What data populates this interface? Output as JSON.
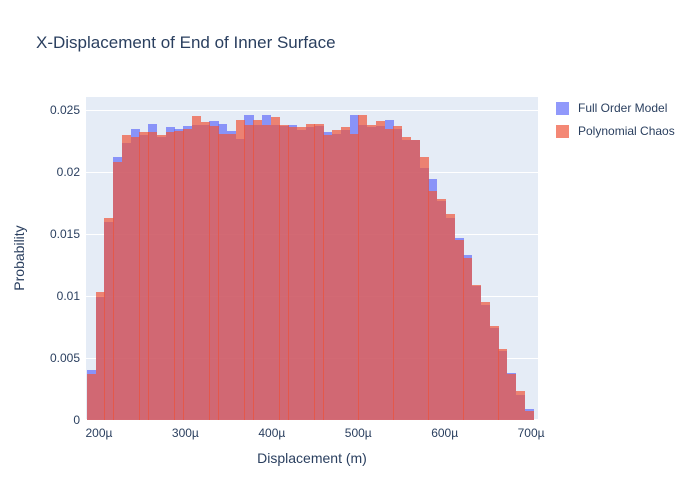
{
  "chart_data": {
    "type": "histogram",
    "barmode": "overlay",
    "title": "X-Displacement of End of Inner Surface",
    "xlabel": "Displacement (m)",
    "ylabel": "Probability",
    "grid": true,
    "legend_position": "outside-top-right",
    "x_unit": "micrometers",
    "x_range_um": [
      185,
      708
    ],
    "y_range": [
      0,
      0.02605
    ],
    "bin_start_um": 186,
    "bin_width_um": 10.13,
    "x_ticks": [
      {
        "v": 200,
        "label": "200µ"
      },
      {
        "v": 300,
        "label": "300µ"
      },
      {
        "v": 400,
        "label": "400µ"
      },
      {
        "v": 500,
        "label": "500µ"
      },
      {
        "v": 600,
        "label": "600µ"
      },
      {
        "v": 700,
        "label": "700µ"
      }
    ],
    "y_ticks": [
      {
        "v": 0,
        "label": "0"
      },
      {
        "v": 0.005,
        "label": "0.005"
      },
      {
        "v": 0.01,
        "label": "0.01"
      },
      {
        "v": 0.015,
        "label": "0.015"
      },
      {
        "v": 0.02,
        "label": "0.02"
      },
      {
        "v": 0.025,
        "label": "0.025"
      }
    ],
    "series": [
      {
        "name": "Full Order Model",
        "color": "#636EFA",
        "fill_opacity": 0.7,
        "values": [
          0.004,
          0.0099,
          0.016,
          0.0212,
          0.0223,
          0.0235,
          0.023,
          0.0239,
          0.0228,
          0.0236,
          0.0235,
          0.0237,
          0.0238,
          0.0238,
          0.0241,
          0.0239,
          0.0233,
          0.0227,
          0.0246,
          0.0238,
          0.0246,
          0.0238,
          0.0237,
          0.0238,
          0.0234,
          0.0236,
          0.0237,
          0.0232,
          0.0231,
          0.0234,
          0.0246,
          0.0238,
          0.0236,
          0.0237,
          0.0242,
          0.0235,
          0.0226,
          0.0226,
          0.0203,
          0.0194,
          0.0177,
          0.0163,
          0.0147,
          0.0133,
          0.0108,
          0.0093,
          0.0074,
          0.0056,
          0.0038,
          0.002,
          0.0009
        ]
      },
      {
        "name": "Polynomial Chaos",
        "color": "#EF553B",
        "fill_opacity": 0.7,
        "values": [
          0.0037,
          0.0103,
          0.0163,
          0.0208,
          0.023,
          0.0228,
          0.0232,
          0.0232,
          0.023,
          0.0232,
          0.0233,
          0.0235,
          0.0245,
          0.024,
          0.0237,
          0.0231,
          0.0231,
          0.0242,
          0.0238,
          0.0242,
          0.0238,
          0.0244,
          0.0238,
          0.0236,
          0.0236,
          0.0239,
          0.0239,
          0.023,
          0.0234,
          0.0236,
          0.0231,
          0.0246,
          0.0238,
          0.0241,
          0.0235,
          0.0237,
          0.0228,
          0.0226,
          0.0212,
          0.0185,
          0.0178,
          0.0166,
          0.0145,
          0.0131,
          0.0109,
          0.0095,
          0.0076,
          0.0057,
          0.0037,
          0.0023,
          0.0007
        ]
      }
    ],
    "colors": {
      "plot_bg": "#E5ECF6",
      "grid": "#FFFFFF",
      "text": "#2A3F5F",
      "page_bg": "#FFFFFF"
    }
  }
}
